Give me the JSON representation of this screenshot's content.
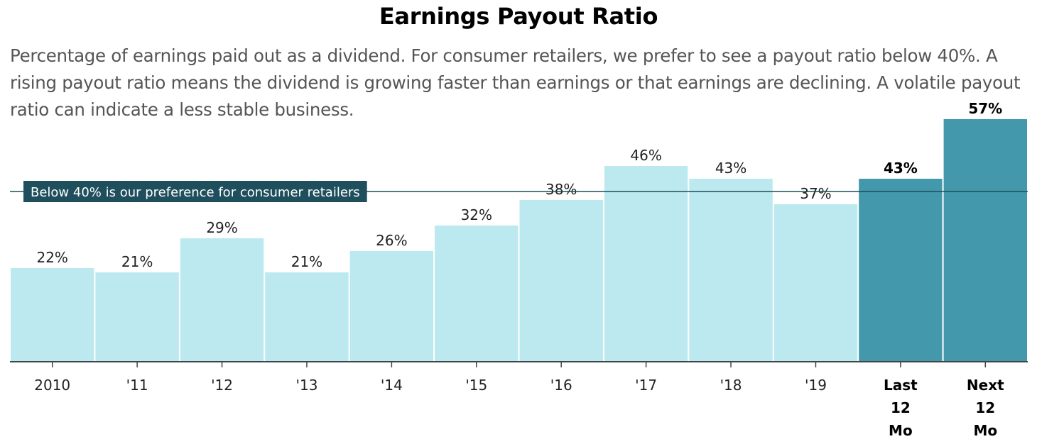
{
  "header": {
    "title": "Earnings Payout Ratio",
    "description": "Percentage of earnings paid out as a dividend. For consumer retailers, we prefer to see a payout ratio below 40%. A rising payout ratio means the dividend is growing faster than earnings or that earnings are declining. A volatile payout ratio can indicate a less stable business."
  },
  "colors": {
    "historical_bar": "#bbe9ef",
    "highlight_bar": "#4399ab",
    "reference_line": "#1c4d5a",
    "reference_label_bg": "#1f4f5c"
  },
  "chart_data": {
    "type": "bar",
    "title": "Earnings Payout Ratio",
    "categories": [
      "2010",
      "'11",
      "'12",
      "'13",
      "'14",
      "'15",
      "'16",
      "'17",
      "'18",
      "'19",
      "Last 12 Mo",
      "Next 12 Mo"
    ],
    "category_lines": [
      [
        "2010"
      ],
      [
        "'11"
      ],
      [
        "'12"
      ],
      [
        "'13"
      ],
      [
        "'14"
      ],
      [
        "'15"
      ],
      [
        "'16"
      ],
      [
        "'17"
      ],
      [
        "'18"
      ],
      [
        "'19"
      ],
      [
        "Last",
        "12",
        "Mo"
      ],
      [
        "Next",
        "12",
        "Mo"
      ]
    ],
    "values": [
      22,
      21,
      29,
      21,
      26,
      32,
      38,
      46,
      43,
      37,
      43,
      57
    ],
    "value_labels": [
      "22%",
      "21%",
      "29%",
      "21%",
      "26%",
      "32%",
      "38%",
      "46%",
      "43%",
      "37%",
      "43%",
      "57%"
    ],
    "highlighted": [
      false,
      false,
      false,
      false,
      false,
      false,
      false,
      false,
      false,
      false,
      true,
      true
    ],
    "ylim": [
      0,
      60
    ],
    "unit": "%",
    "grid": false,
    "reference_line": {
      "value": 40,
      "label": "Below 40% is our preference for consumer retailers"
    }
  }
}
